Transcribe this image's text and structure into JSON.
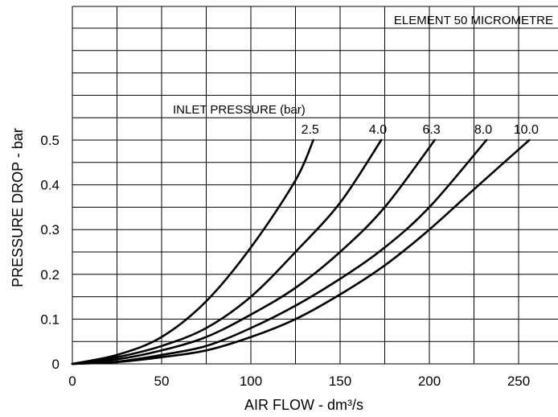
{
  "chart_data": {
    "type": "line",
    "title": "",
    "annotation": "ELEMENT 50 MICROMETRE",
    "legend_title": "INLET PRESSURE (bar)",
    "xlabel": "AIR FLOW - dm³/s",
    "ylabel": "PRESSURE DROP - bar",
    "xlim": [
      0,
      270
    ],
    "ylim": [
      0,
      0.5
    ],
    "x_ticks": [
      0,
      50,
      100,
      150,
      200,
      250
    ],
    "x_tick_labels": [
      "0",
      "50",
      "100",
      "150",
      "200",
      "250"
    ],
    "y_ticks": [
      0,
      0.1,
      0.2,
      0.3,
      0.4,
      0.5
    ],
    "y_tick_labels": [
      "0",
      "0.1",
      "0.2",
      "0.3",
      "0.4",
      "0.5"
    ],
    "grid": true,
    "series": [
      {
        "name": "2.5",
        "x": [
          0,
          25,
          50,
          75,
          100,
          125,
          135
        ],
        "y": [
          0,
          0.02,
          0.06,
          0.14,
          0.26,
          0.41,
          0.5
        ]
      },
      {
        "name": "4.0",
        "x": [
          0,
          25,
          50,
          75,
          100,
          125,
          150,
          173
        ],
        "y": [
          0,
          0.015,
          0.04,
          0.08,
          0.15,
          0.25,
          0.36,
          0.5
        ]
      },
      {
        "name": "6.3",
        "x": [
          0,
          25,
          50,
          75,
          100,
          125,
          150,
          175,
          203
        ],
        "y": [
          0,
          0.01,
          0.03,
          0.06,
          0.11,
          0.17,
          0.25,
          0.35,
          0.5
        ]
      },
      {
        "name": "8.0",
        "x": [
          0,
          25,
          50,
          75,
          100,
          125,
          150,
          175,
          200,
          232
        ],
        "y": [
          0,
          0.005,
          0.02,
          0.04,
          0.08,
          0.13,
          0.19,
          0.26,
          0.35,
          0.5
        ]
      },
      {
        "name": "10.0",
        "x": [
          0,
          25,
          50,
          75,
          100,
          125,
          150,
          175,
          200,
          225,
          256
        ],
        "y": [
          0,
          0.004,
          0.015,
          0.03,
          0.06,
          0.1,
          0.155,
          0.22,
          0.3,
          0.39,
          0.5
        ]
      }
    ]
  }
}
